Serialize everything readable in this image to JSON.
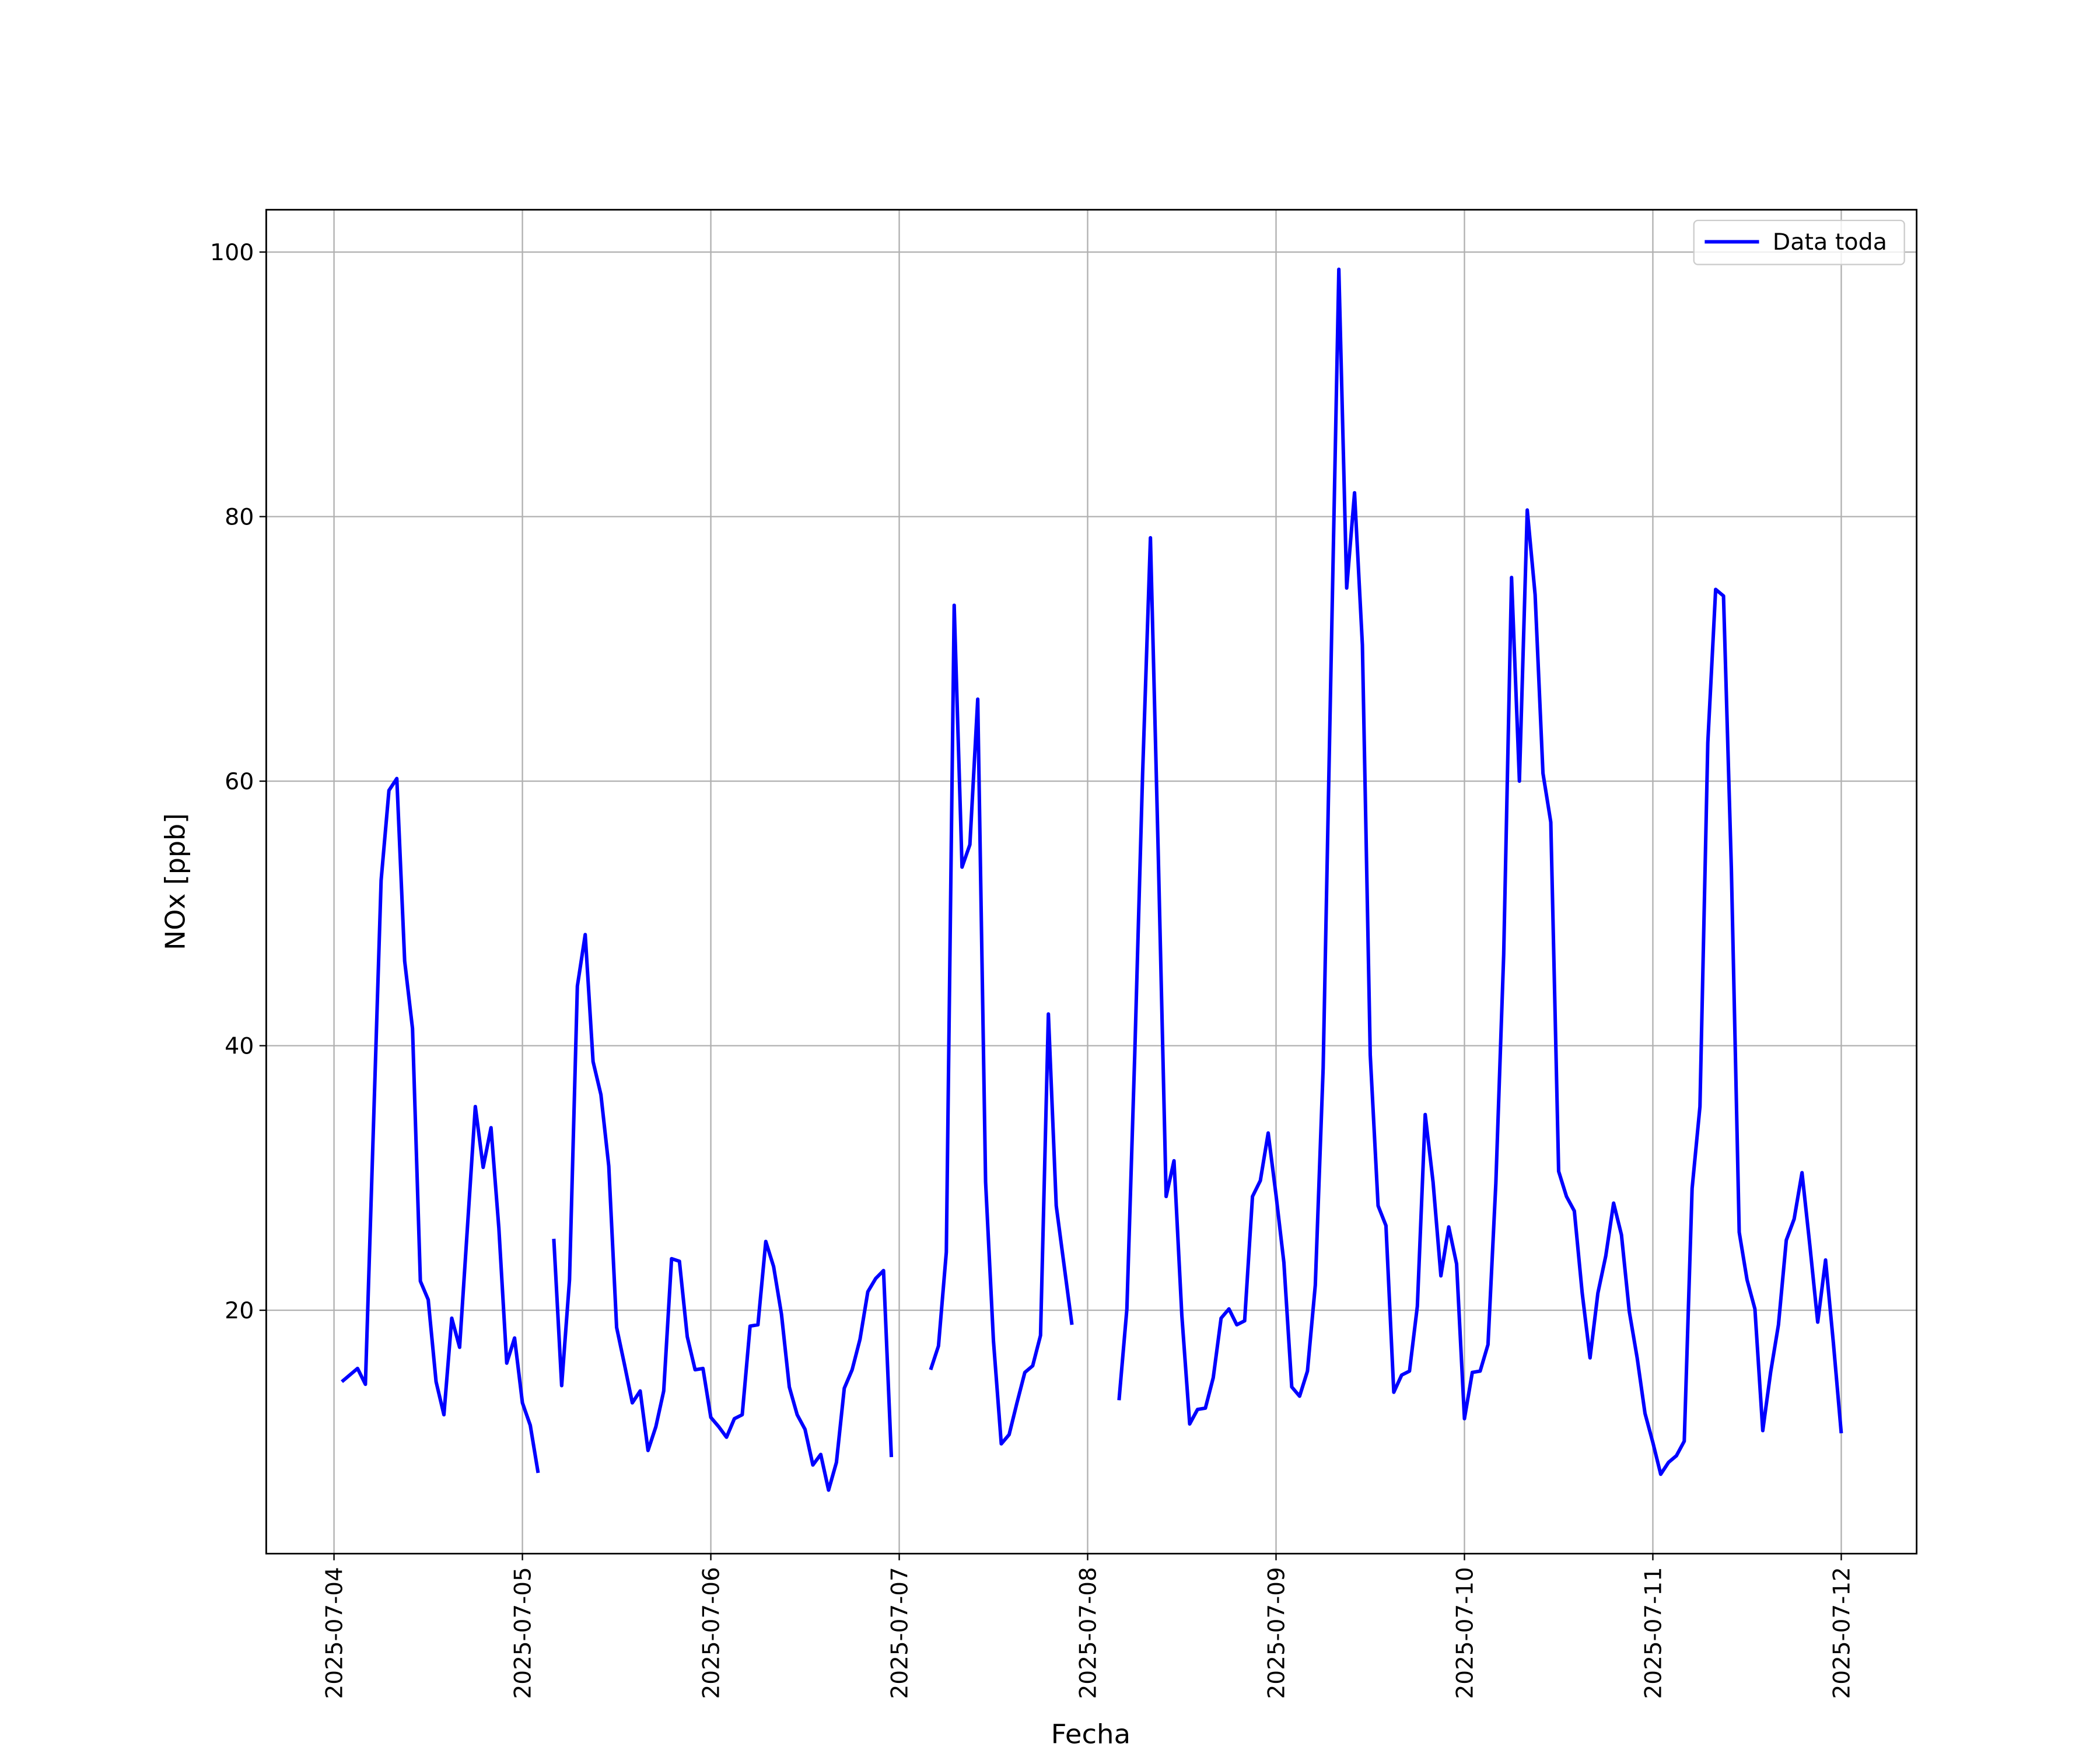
{
  "chart_data": {
    "type": "line",
    "xlabel": "Fecha",
    "ylabel": "NOx [ppb]",
    "x": [
      "2025-07-04 01:00",
      "2025-07-04 03:00",
      "2025-07-04 04:00",
      "2025-07-04 06:00",
      "2025-07-04 07:00",
      "2025-07-04 08:00",
      "2025-07-04 09:00",
      "2025-07-04 10:00",
      "2025-07-04 11:00",
      "2025-07-04 12:00",
      "2025-07-04 13:00",
      "2025-07-04 14:00",
      "2025-07-04 15:00",
      "2025-07-04 16:00",
      "2025-07-04 18:00",
      "2025-07-04 19:00",
      "2025-07-04 20:00",
      "2025-07-04 21:00",
      "2025-07-04 22:00",
      "2025-07-04 23:00",
      "2025-07-05 00:00",
      "2025-07-05 01:00",
      "2025-07-05 02:00",
      "2025-07-05 03:00",
      "2025-07-05 04:00",
      "2025-07-05 05:00",
      "2025-07-05 06:00",
      "2025-07-05 07:00",
      "2025-07-05 08:00",
      "2025-07-05 09:00",
      "2025-07-05 10:00",
      "2025-07-05 11:00",
      "2025-07-05 12:00",
      "2025-07-05 13:00",
      "2025-07-05 14:00",
      "2025-07-05 15:00",
      "2025-07-05 16:00",
      "2025-07-05 17:00",
      "2025-07-05 18:00",
      "2025-07-05 19:00",
      "2025-07-05 20:00",
      "2025-07-05 21:00",
      "2025-07-05 22:00",
      "2025-07-05 23:00",
      "2025-07-06 00:00",
      "2025-07-06 01:00",
      "2025-07-06 02:00",
      "2025-07-06 03:00",
      "2025-07-06 04:00",
      "2025-07-06 05:00",
      "2025-07-06 06:00",
      "2025-07-06 07:00",
      "2025-07-06 08:00",
      "2025-07-06 09:00",
      "2025-07-06 10:00",
      "2025-07-06 11:00",
      "2025-07-06 12:00",
      "2025-07-06 13:00",
      "2025-07-06 14:00",
      "2025-07-06 15:00",
      "2025-07-06 16:00",
      "2025-07-06 17:00",
      "2025-07-06 18:00",
      "2025-07-06 19:00",
      "2025-07-06 20:00",
      "2025-07-06 21:00",
      "2025-07-06 22:00",
      "2025-07-06 23:00",
      "2025-07-07 00:00",
      "2025-07-07 04:00",
      "2025-07-07 05:00",
      "2025-07-07 06:00",
      "2025-07-07 07:00",
      "2025-07-07 08:00",
      "2025-07-07 09:00",
      "2025-07-07 10:00",
      "2025-07-07 11:00",
      "2025-07-07 12:00",
      "2025-07-07 13:00",
      "2025-07-07 14:00",
      "2025-07-07 15:00",
      "2025-07-07 16:00",
      "2025-07-07 17:00",
      "2025-07-07 18:00",
      "2025-07-07 19:00",
      "2025-07-07 20:00",
      "2025-07-07 21:00",
      "2025-07-07 22:00",
      "2025-07-07 23:00",
      "2025-07-08 04:00",
      "2025-07-08 05:00",
      "2025-07-08 06:00",
      "2025-07-08 07:00",
      "2025-07-08 08:00",
      "2025-07-08 09:00",
      "2025-07-08 10:00",
      "2025-07-08 11:00",
      "2025-07-08 12:00",
      "2025-07-08 13:00",
      "2025-07-08 14:00",
      "2025-07-08 15:00",
      "2025-07-08 16:00",
      "2025-07-08 17:00",
      "2025-07-08 18:00",
      "2025-07-08 19:00",
      "2025-07-08 20:00",
      "2025-07-08 21:00",
      "2025-07-08 22:00",
      "2025-07-08 23:00",
      "2025-07-09 00:00",
      "2025-07-09 01:00",
      "2025-07-09 02:00",
      "2025-07-09 03:00",
      "2025-07-09 04:00",
      "2025-07-09 05:00",
      "2025-07-09 06:00",
      "2025-07-09 07:00",
      "2025-07-09 08:00",
      "2025-07-09 09:00",
      "2025-07-09 10:00",
      "2025-07-09 11:00",
      "2025-07-09 12:00",
      "2025-07-09 13:00",
      "2025-07-09 14:00",
      "2025-07-09 15:00",
      "2025-07-09 16:00",
      "2025-07-09 17:00",
      "2025-07-09 18:00",
      "2025-07-09 19:00",
      "2025-07-09 20:00",
      "2025-07-09 21:00",
      "2025-07-09 22:00",
      "2025-07-09 23:00",
      "2025-07-10 00:00",
      "2025-07-10 01:00",
      "2025-07-10 02:00",
      "2025-07-10 03:00",
      "2025-07-10 04:00",
      "2025-07-10 05:00",
      "2025-07-10 06:00",
      "2025-07-10 07:00",
      "2025-07-10 08:00",
      "2025-07-10 09:00",
      "2025-07-10 10:00",
      "2025-07-10 11:00",
      "2025-07-10 12:00",
      "2025-07-10 13:00",
      "2025-07-10 14:00",
      "2025-07-10 15:00",
      "2025-07-10 16:00",
      "2025-07-10 17:00",
      "2025-07-10 18:00",
      "2025-07-10 19:00",
      "2025-07-10 20:00",
      "2025-07-10 21:00",
      "2025-07-10 22:00",
      "2025-07-10 23:00",
      "2025-07-11 00:00",
      "2025-07-11 01:00",
      "2025-07-11 02:00",
      "2025-07-11 03:00",
      "2025-07-11 04:00",
      "2025-07-11 05:00",
      "2025-07-11 06:00",
      "2025-07-11 07:00",
      "2025-07-11 08:00",
      "2025-07-11 09:00",
      "2025-07-11 10:00",
      "2025-07-11 11:00",
      "2025-07-11 12:00",
      "2025-07-11 13:00",
      "2025-07-11 14:00",
      "2025-07-11 15:00",
      "2025-07-11 16:00",
      "2025-07-11 17:00",
      "2025-07-11 18:00",
      "2025-07-11 19:00",
      "2025-07-11 20:00",
      "2025-07-11 21:00",
      "2025-07-11 22:00",
      "2025-07-11 23:00",
      "2025-07-12 00:00"
    ],
    "series": [
      {
        "name": "Data toda",
        "color": "#0000ff",
        "values": [
          14.6,
          15.6,
          14.4,
          52.5,
          59.3,
          60.2,
          46.4,
          41.3,
          22.2,
          20.8,
          14.6,
          12.1,
          19.4,
          17.2,
          35.4,
          30.8,
          33.8,
          26.2,
          16.0,
          17.9,
          13.0,
          11.3,
          7.7,
          null,
          25.4,
          14.3,
          22.3,
          44.5,
          48.4,
          38.8,
          36.3,
          30.9,
          18.7,
          15.9,
          13.0,
          13.9,
          9.4,
          11.2,
          13.9,
          23.9,
          23.7,
          18.0,
          15.5,
          15.6,
          11.9,
          11.2,
          10.4,
          11.8,
          12.1,
          18.8,
          18.9,
          25.2,
          23.3,
          19.7,
          14.2,
          12.1,
          11.0,
          8.3,
          9.1,
          6.4,
          8.5,
          14.1,
          15.5,
          17.8,
          21.4,
          22.4,
          23.0,
          8.9,
          null,
          15.5,
          17.3,
          24.4,
          73.3,
          53.5,
          55.2,
          66.2,
          29.7,
          17.7,
          9.9,
          10.6,
          13.0,
          15.3,
          15.8,
          18.1,
          42.4,
          27.9,
          23.4,
          18.9,
          null,
          13.2,
          20.1,
          39.3,
          60.5,
          78.4,
          54.4,
          28.6,
          31.3,
          19.6,
          11.4,
          12.5,
          12.6,
          14.9,
          19.4,
          20.1,
          18.9,
          19.2,
          28.6,
          29.8,
          33.4,
          28.7,
          23.6,
          14.2,
          13.5,
          15.4,
          21.9,
          38.3,
          68.6,
          98.7,
          74.6,
          81.8,
          70.3,
          39.3,
          27.9,
          26.4,
          13.8,
          15.1,
          15.4,
          20.3,
          34.8,
          29.7,
          22.6,
          26.3,
          23.5,
          11.8,
          15.3,
          15.4,
          17.4,
          29.6,
          46.9,
          75.4,
          60.0,
          80.5,
          74.1,
          60.6,
          56.9,
          30.5,
          28.6,
          27.5,
          21.3,
          16.4,
          21.3,
          24.1,
          28.1,
          25.7,
          19.9,
          16.4,
          12.2,
          10.0,
          7.6,
          8.5,
          9.0,
          10.1,
          29.2,
          35.4,
          62.9,
          74.5,
          74.0,
          53.4,
          25.9,
          22.3,
          20.1,
          10.9,
          15.3,
          18.9,
          25.3,
          26.9,
          30.4,
          24.9,
          19.1,
          23.8,
          17.5,
          10.7
        ]
      }
    ],
    "xlim": [
      "2025-07-03 15:22",
      "2025-07-12 09:36"
    ],
    "xticks": [
      "2025-07-04",
      "2025-07-05",
      "2025-07-06",
      "2025-07-07",
      "2025-07-08",
      "2025-07-09",
      "2025-07-10",
      "2025-07-11",
      "2025-07-12"
    ],
    "ylim": [
      1.6,
      103.2
    ],
    "yticks": [
      20,
      40,
      60,
      80,
      100
    ],
    "grid": true,
    "legend": "upper right"
  }
}
